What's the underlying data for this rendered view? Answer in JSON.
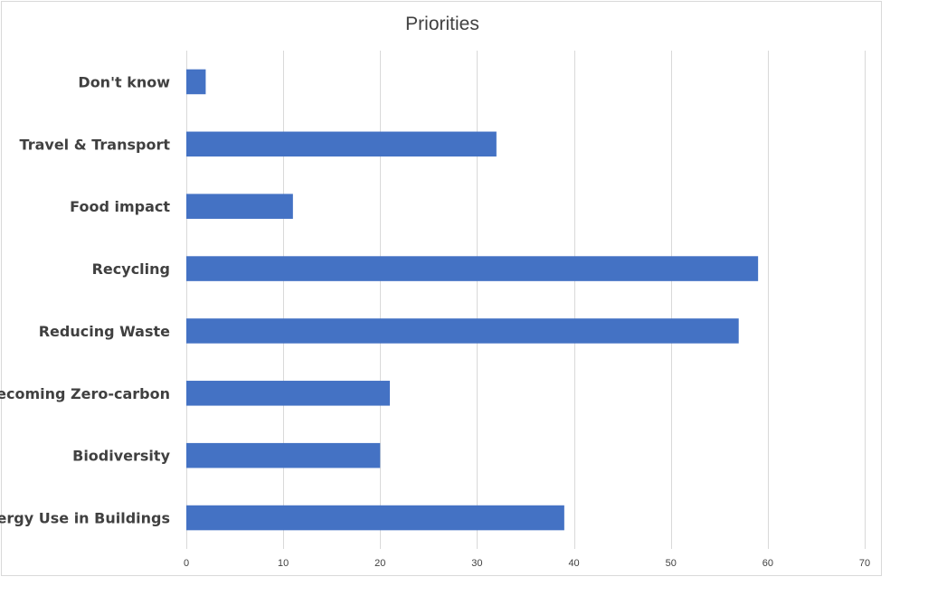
{
  "chart_data": {
    "type": "bar",
    "orientation": "horizontal",
    "title": "Priorities",
    "categories": [
      "Energy Use in Buildings",
      "Biodiversity",
      "Becoming Zero-carbon",
      "Reducing Waste",
      "Recycling",
      "Food impact",
      "Travel & Transport",
      "Don't know"
    ],
    "values": [
      39,
      20,
      21,
      57,
      59,
      11,
      32,
      2
    ],
    "xlim": [
      0,
      70
    ],
    "xticks": [
      0,
      10,
      20,
      30,
      40,
      50,
      60,
      70
    ],
    "xlabel": "",
    "ylabel": "",
    "grid": "vertical",
    "legend": "none",
    "bar_color": "#4472c4"
  }
}
